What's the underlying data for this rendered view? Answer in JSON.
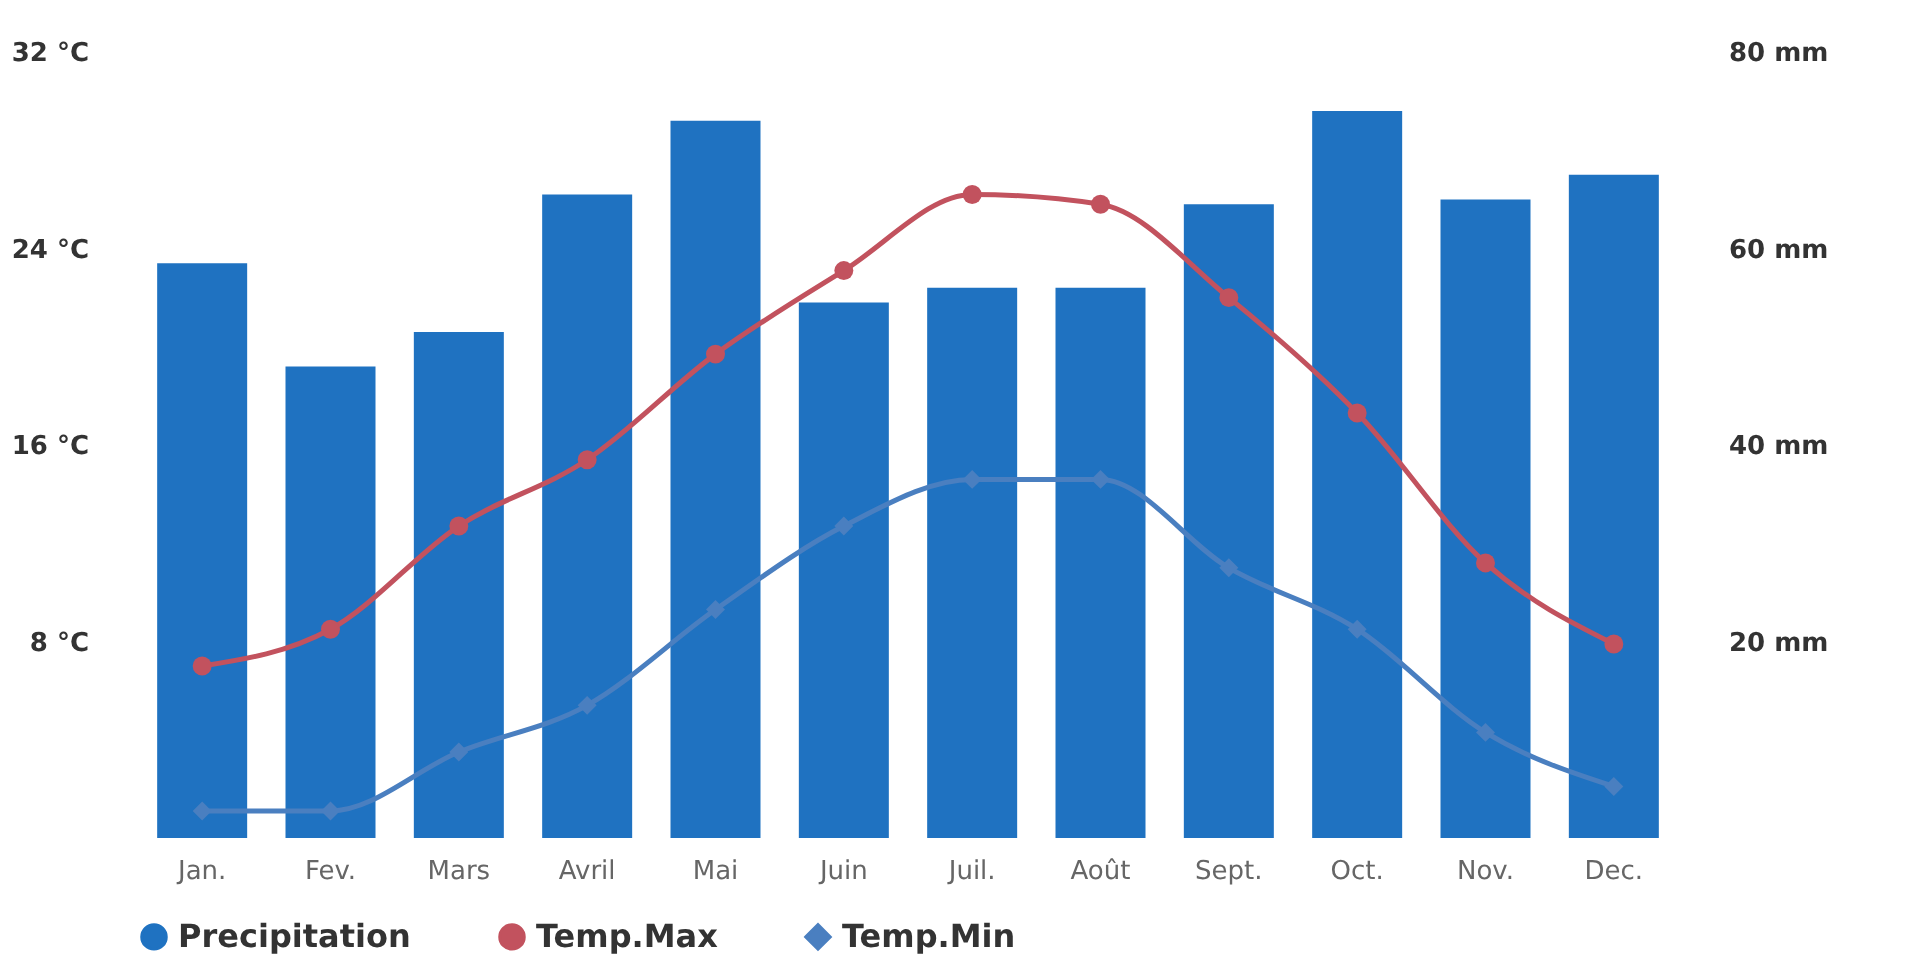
{
  "chart_data": {
    "type": "bar",
    "categories": [
      "Jan.",
      "Fev.",
      "Mars",
      "Avril",
      "Mai",
      "Juin",
      "Juil.",
      "Août",
      "Sept.",
      "Oct.",
      "Nov.",
      "Dec."
    ],
    "series": [
      {
        "name": "Precipitation",
        "axis": "y2",
        "color": "#1f72c1",
        "marker": "circle",
        "values": [
          58.5,
          48,
          51.5,
          65.5,
          73,
          54.5,
          56,
          56,
          64.5,
          74,
          65,
          67.5
        ]
      },
      {
        "name": "Temp.Max",
        "type": "line",
        "axis": "y",
        "color": "#c2525e",
        "marker": "circle",
        "values": [
          7,
          8.5,
          12.7,
          15.4,
          19.7,
          23.1,
          26.2,
          25.8,
          22,
          17.3,
          11.2,
          7.9
        ]
      },
      {
        "name": "Temp.Min",
        "type": "line",
        "axis": "y",
        "color": "#4a7fc0",
        "marker": "diamond",
        "values": [
          1.1,
          1.1,
          3.5,
          5.4,
          9.3,
          12.7,
          14.6,
          14.6,
          11,
          8.5,
          4.3,
          2.1
        ]
      }
    ],
    "ylim": [
      0,
      32
    ],
    "yticks": [
      {
        "value": 8,
        "label": "8 °C"
      },
      {
        "value": 16,
        "label": "16 °C"
      },
      {
        "value": 24,
        "label": "24 °C"
      },
      {
        "value": 32,
        "label": "32 °C"
      }
    ],
    "y2lim": [
      0,
      80
    ],
    "y2ticks": [
      {
        "value": 20,
        "label": "20 mm"
      },
      {
        "value": 40,
        "label": "40 mm"
      },
      {
        "value": 60,
        "label": "60 mm"
      },
      {
        "value": 80,
        "label": "80 mm"
      }
    ],
    "grid": false,
    "legend": "bottom"
  }
}
